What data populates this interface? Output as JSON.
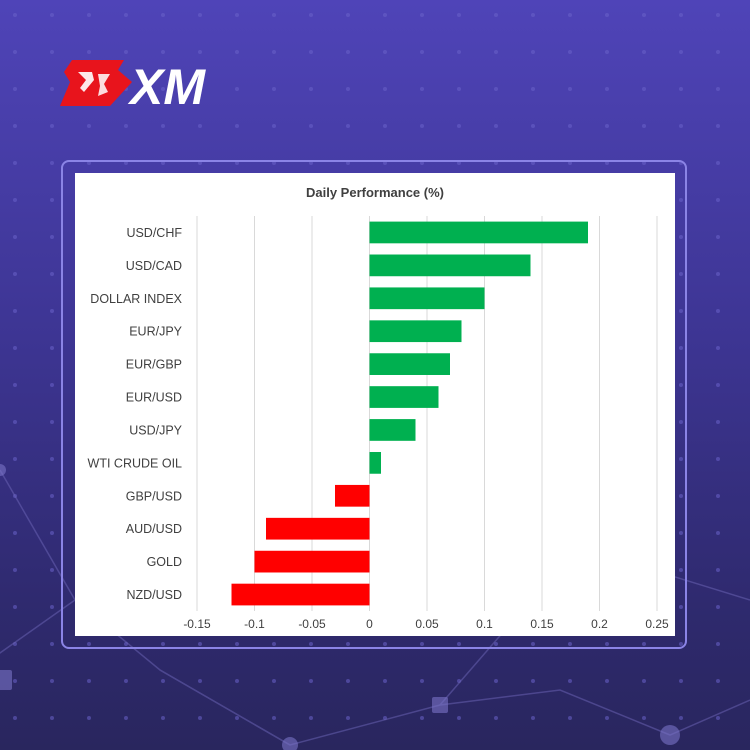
{
  "brand": {
    "name": "XM",
    "logo_icon": "bull-icon",
    "accent": "#e8141c"
  },
  "colors": {
    "positive": "#00b050",
    "negative": "#ff0000",
    "grid": "#d9d9d9",
    "label": "#404040"
  },
  "chart_data": {
    "type": "bar",
    "orientation": "horizontal",
    "title": "Daily Performance  (%)",
    "xlabel": "",
    "ylabel": "",
    "xlim": [
      -0.15,
      0.25
    ],
    "x_ticks": [
      -0.15,
      -0.1,
      -0.05,
      0,
      0.05,
      0.1,
      0.15,
      0.2,
      0.25
    ],
    "x_tick_labels": [
      "-0.15",
      "-0.1",
      "-0.05",
      "0",
      "0.05",
      "0.1",
      "0.15",
      "0.2",
      "0.25"
    ],
    "grid": "vertical",
    "legend": "none",
    "categories": [
      "USD/CHF",
      "USD/CAD",
      "DOLLAR INDEX",
      "EUR/JPY",
      "EUR/GBP",
      "EUR/USD",
      "USD/JPY",
      "WTI CRUDE OIL",
      "GBP/USD",
      "AUD/USD",
      "GOLD",
      "NZD/USD"
    ],
    "values": [
      0.19,
      0.14,
      0.1,
      0.08,
      0.07,
      0.06,
      0.04,
      0.01,
      -0.03,
      -0.09,
      -0.1,
      -0.12
    ]
  }
}
